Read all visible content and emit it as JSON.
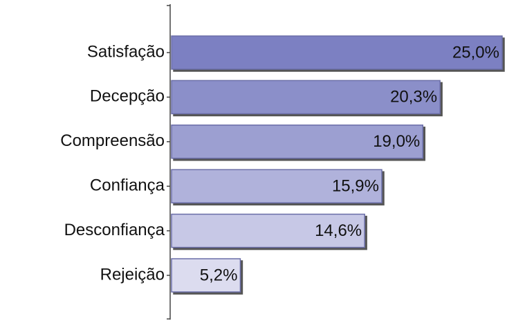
{
  "chart_data": {
    "type": "barh",
    "categories": [
      "Satisfação",
      "Decepção",
      "Compreensão",
      "Confiança",
      "Desconfiança",
      "Rejeição"
    ],
    "values": [
      25.0,
      20.3,
      19.0,
      15.9,
      14.6,
      5.2
    ],
    "value_labels": [
      "25,0%",
      "20,3%",
      "19,0%",
      "15,9%",
      "14,6%",
      "5,2%"
    ],
    "colors": [
      "#7c80c2",
      "#8b8fc9",
      "#9c9fd1",
      "#b0b2db",
      "#c7c8e6",
      "#dcdcef"
    ]
  }
}
